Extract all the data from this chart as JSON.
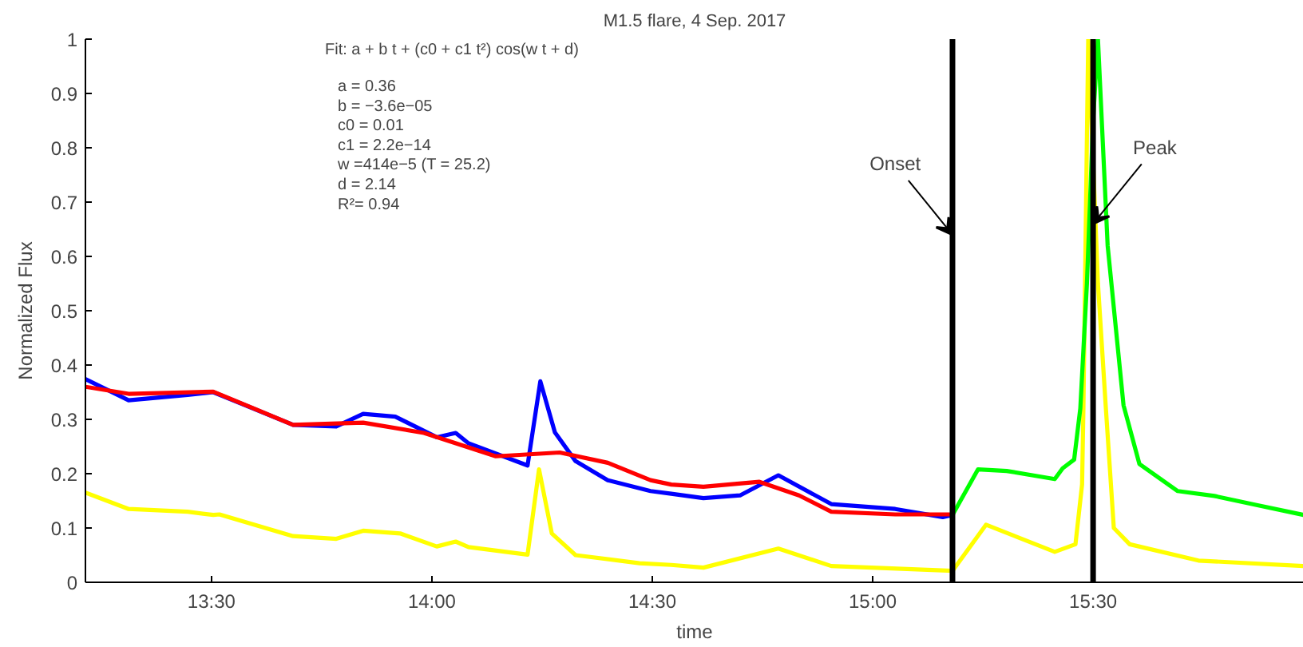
{
  "chart_data": {
    "type": "line",
    "title": "M1.5 flare, 4 Sep. 2017",
    "xlabel": "time",
    "ylabel": "Normalized Flux",
    "xlim": [
      13.214,
      15.978
    ],
    "ylim": [
      0,
      1
    ],
    "xticks": [
      {
        "value": 13.5,
        "label": "13:30"
      },
      {
        "value": 14,
        "label": "14:00"
      },
      {
        "value": 14.5,
        "label": "14:30"
      },
      {
        "value": 15,
        "label": "15:00"
      },
      {
        "value": 15.5,
        "label": "15:30"
      }
    ],
    "yticks": [
      0,
      0.1,
      0.2,
      0.3,
      0.4,
      0.5,
      0.6,
      0.7,
      0.8,
      0.9,
      1
    ],
    "grid": false,
    "marker": "none",
    "line_style": "solid",
    "series": [
      {
        "color": "#ffff00",
        "x": [
          13.214,
          13.312,
          13.446,
          13.504,
          13.518,
          13.685,
          13.783,
          13.844,
          13.928,
          14.011,
          14.054,
          14.083,
          14.217,
          14.243,
          14.272,
          14.326,
          14.471,
          14.543,
          14.616,
          14.786,
          14.906,
          15.181,
          15.257,
          15.413,
          15.46,
          15.475,
          15.478,
          15.486,
          15.489,
          15.511,
          15.529,
          15.547,
          15.583,
          15.739,
          15.978
        ],
        "values": [
          0.165,
          0.135,
          0.13,
          0.124,
          0.125,
          0.085,
          0.08,
          0.095,
          0.09,
          0.066,
          0.075,
          0.065,
          0.051,
          0.208,
          0.09,
          0.05,
          0.035,
          0.032,
          0.027,
          0.062,
          0.03,
          0.021,
          0.106,
          0.056,
          0.07,
          0.18,
          0.32,
          0.82,
          1.0,
          0.55,
          0.32,
          0.1,
          0.07,
          0.04,
          0.03
        ]
      },
      {
        "color": "#00ff00",
        "x": [
          15.181,
          15.239,
          15.304,
          15.413,
          15.431,
          15.457,
          15.471,
          15.486,
          15.5,
          15.511,
          15.522,
          15.533,
          15.569,
          15.605,
          15.692,
          15.775,
          15.873,
          15.978
        ],
        "values": [
          0.124,
          0.208,
          0.205,
          0.19,
          0.21,
          0.226,
          0.32,
          0.55,
          0.85,
          1.0,
          0.81,
          0.62,
          0.326,
          0.218,
          0.168,
          0.159,
          0.142,
          0.124
        ]
      },
      {
        "color": "#0000ff",
        "x": [
          13.214,
          13.312,
          13.446,
          13.504,
          13.685,
          13.783,
          13.844,
          13.917,
          14.011,
          14.054,
          14.083,
          14.217,
          14.246,
          14.279,
          14.326,
          14.399,
          14.496,
          14.543,
          14.616,
          14.699,
          14.786,
          14.906,
          15.051,
          15.159,
          15.181
        ],
        "values": [
          0.374,
          0.335,
          0.345,
          0.35,
          0.29,
          0.287,
          0.31,
          0.305,
          0.267,
          0.275,
          0.256,
          0.215,
          0.37,
          0.276,
          0.223,
          0.188,
          0.168,
          0.163,
          0.155,
          0.16,
          0.197,
          0.144,
          0.135,
          0.12,
          0.124
        ]
      },
      {
        "color": "#ff0000",
        "x": [
          13.214,
          13.312,
          13.504,
          13.685,
          13.844,
          13.982,
          14.145,
          14.29,
          14.399,
          14.496,
          14.543,
          14.616,
          14.743,
          14.833,
          14.906,
          15.051,
          15.181
        ],
        "values": [
          0.36,
          0.347,
          0.351,
          0.29,
          0.294,
          0.275,
          0.232,
          0.239,
          0.22,
          0.188,
          0.18,
          0.176,
          0.185,
          0.16,
          0.13,
          0.125,
          0.125
        ]
      }
    ],
    "ref_lines": [
      {
        "axis": "x",
        "value": 15.181,
        "label": "Onset",
        "color": "#000000"
      },
      {
        "axis": "x",
        "value": 15.5,
        "label": "Peak",
        "color": "#000000"
      }
    ],
    "annotations": [
      "Fit: a + b t + (c0 + c1 t²) cos(w t + d)",
      "a  = 0.36",
      "b  = −3.6e−05",
      "c0 = 0.01",
      "c1 = 2.2e−14",
      "w  =414e−5     (T = 25.2)",
      "d  = 2.14",
      "R²= 0.94"
    ]
  }
}
